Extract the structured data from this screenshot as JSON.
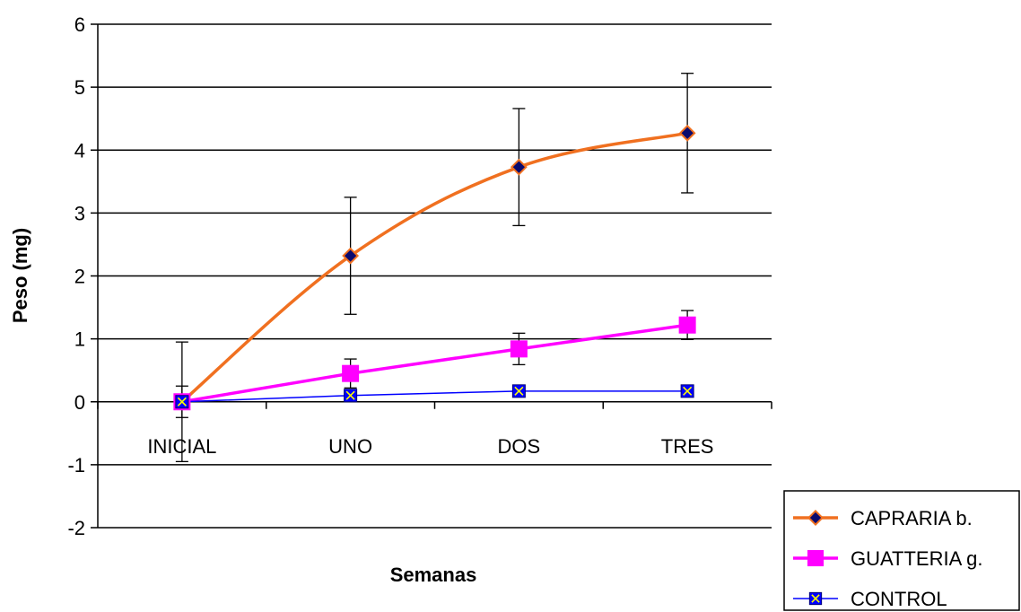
{
  "chart_data": {
    "type": "line",
    "categories": [
      "INICIAL",
      "UNO",
      "DOS",
      "TRES"
    ],
    "ylim": [
      -2,
      6
    ],
    "yticks": [
      -2,
      -1,
      0,
      1,
      2,
      3,
      4,
      5,
      6
    ],
    "grid": true,
    "xlabel": "Semanas",
    "ylabel": "Peso (mg)",
    "legend_position": "bottom-right",
    "series": [
      {
        "name": "CAPRARIA b.",
        "values": [
          0,
          2.32,
          3.73,
          4.27
        ],
        "error": [
          0.95,
          0.93,
          0.93,
          0.95
        ],
        "color": "#f07020",
        "marker": "diamond",
        "marker_color": "#0a0a6e"
      },
      {
        "name": "GUATTERIA g.",
        "values": [
          0,
          0.45,
          0.84,
          1.22
        ],
        "error": [
          0.25,
          0.23,
          0.25,
          0.23
        ],
        "color": "#ff00ff",
        "marker": "square",
        "marker_color": "#ff00ff"
      },
      {
        "name": "CONTROL",
        "values": [
          0,
          0.1,
          0.17,
          0.17
        ],
        "error": [
          0,
          0,
          0,
          0
        ],
        "color": "#0000ff",
        "marker": "square-x",
        "marker_color": "#0000ff"
      }
    ]
  }
}
